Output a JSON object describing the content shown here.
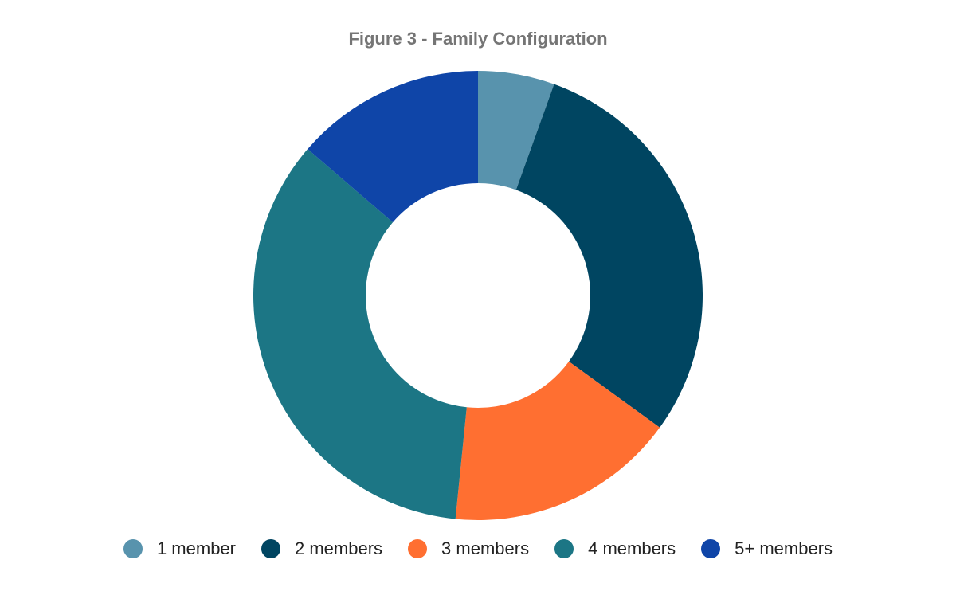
{
  "chart_data": {
    "type": "pie",
    "variant": "donut",
    "title": "Figure 3 - Family Configuration",
    "categories": [
      "1 member",
      "2 members",
      "3 members",
      "4 members",
      "5+ members"
    ],
    "values": [
      5.5,
      29.5,
      16.6,
      34.7,
      13.7
    ],
    "colors": [
      "#5893ad",
      "#004561",
      "#ff6f31",
      "#1c7685",
      "#0f45a8"
    ],
    "legend_position": "bottom"
  }
}
